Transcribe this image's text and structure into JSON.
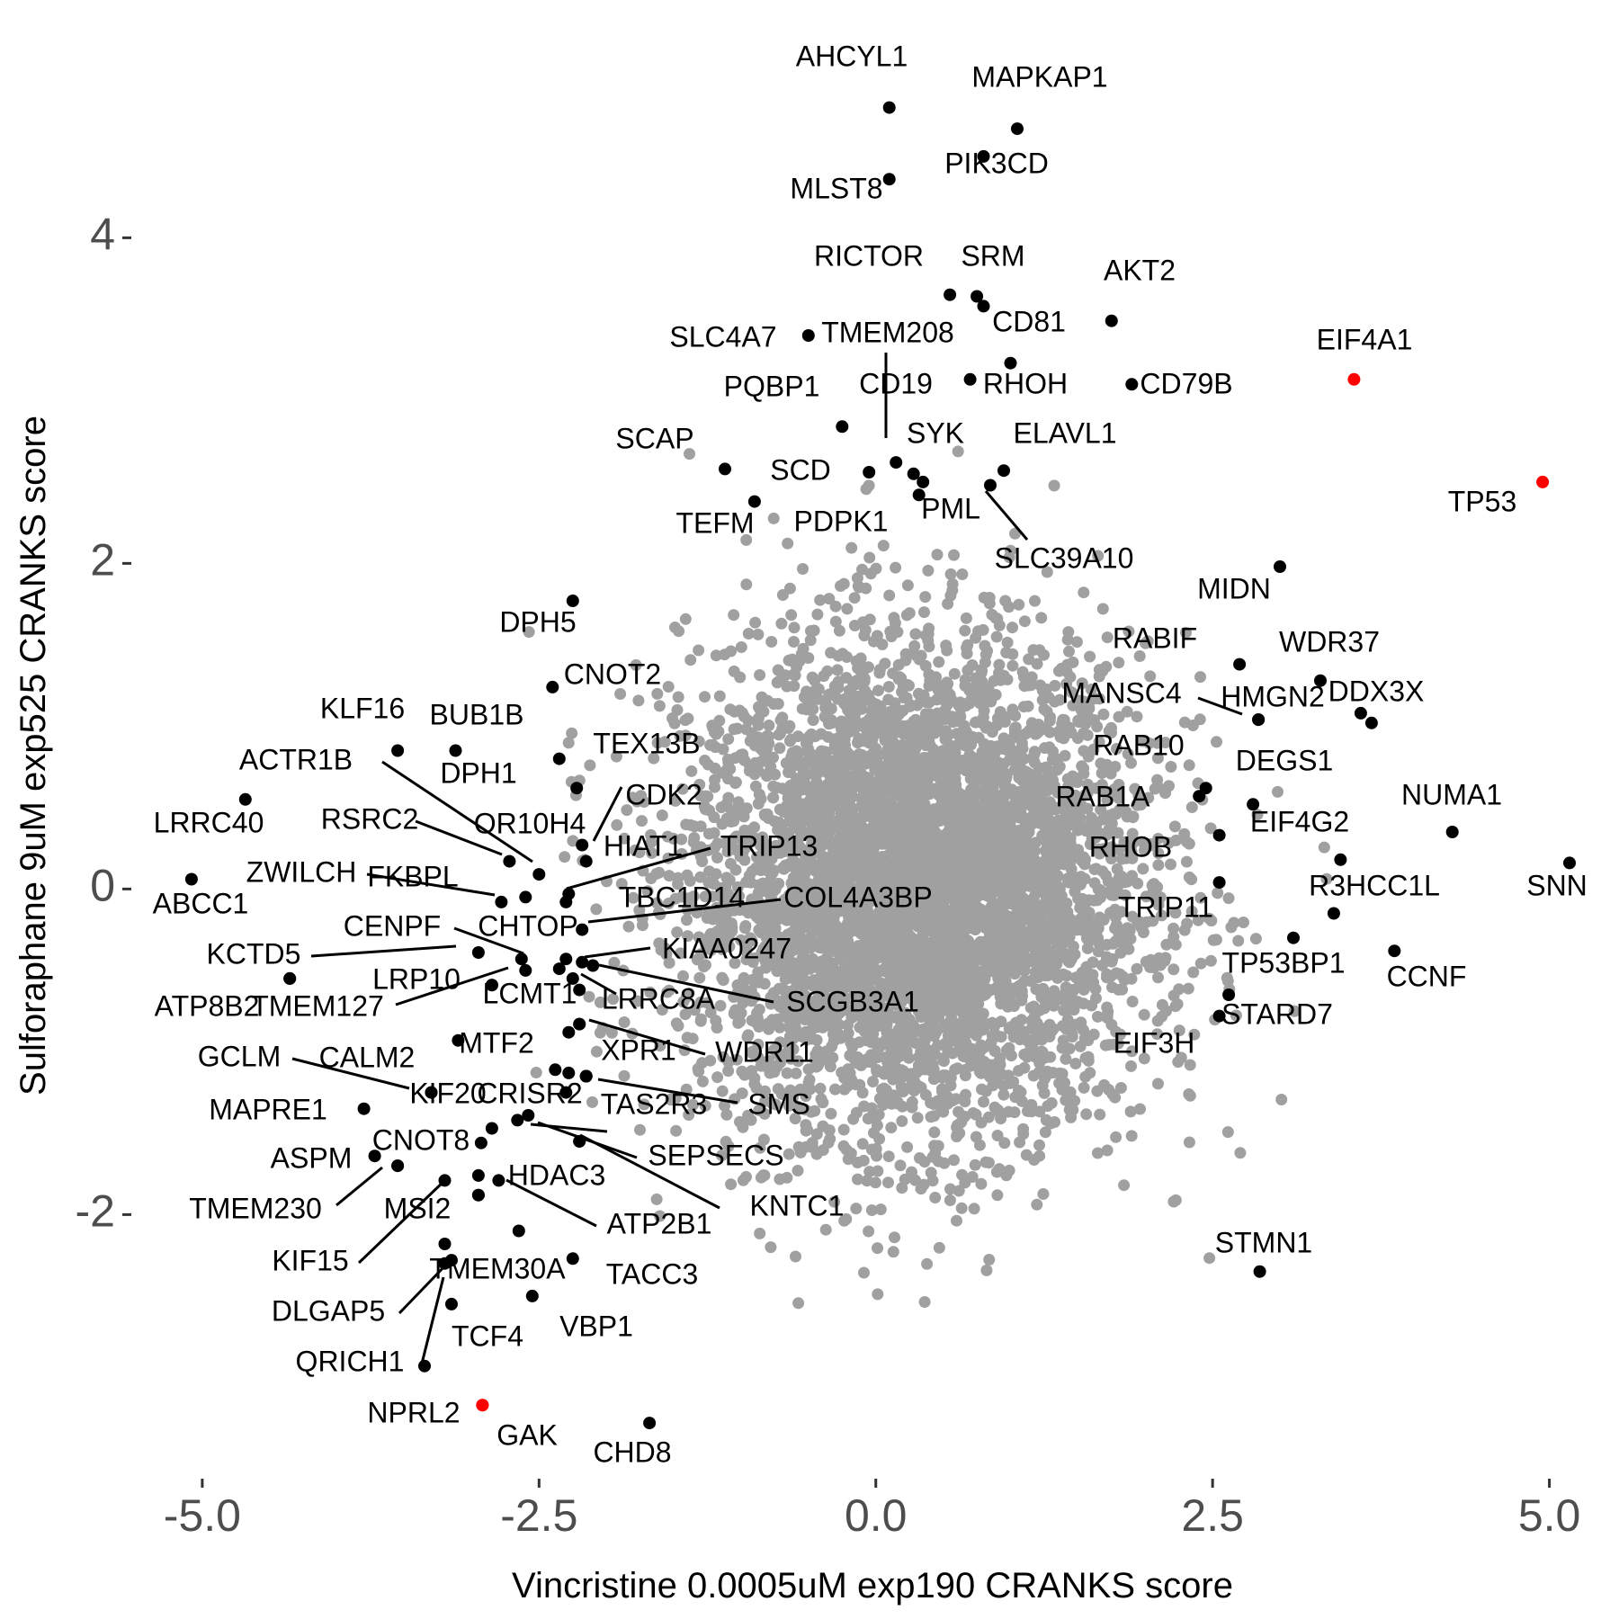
{
  "chart_data": {
    "type": "scatter",
    "title": "",
    "xlabel": "Vincristine 0.0005uM exp190 CRANKS score",
    "ylabel": "Sulforaphane 9uM exp525 CRANKS score",
    "xlim": [
      -5.5,
      5.35
    ],
    "ylim": [
      -3.6,
      5.35
    ],
    "x_ticks": [
      {
        "value": -5.0,
        "label": "-5.0"
      },
      {
        "value": -2.5,
        "label": "-2.5"
      },
      {
        "value": 0.0,
        "label": "0.0"
      },
      {
        "value": 2.5,
        "label": "2.5"
      },
      {
        "value": 5.0,
        "label": "5.0"
      }
    ],
    "y_ticks": [
      {
        "value": -2,
        "label": "-2"
      },
      {
        "value": 0,
        "label": "0"
      },
      {
        "value": 2,
        "label": "2"
      },
      {
        "value": 4,
        "label": "4"
      }
    ],
    "grid": false,
    "legend": "none",
    "colors": {
      "background": "#ffffff",
      "cloud": "#a0a0a0",
      "highlight": "#000000",
      "special": "#ff0000",
      "tick_text": "#4d4d4d"
    },
    "background_cloud": {
      "description_only": false,
      "center": [
        0.3,
        0.0
      ],
      "sd": [
        0.85,
        0.75
      ]
    },
    "highlighted_points": [
      {
        "gene": "AHCYL1",
        "x": 0.1,
        "y": 4.8,
        "color": "#000000"
      },
      {
        "gene": "MAPKAP1",
        "x": 1.05,
        "y": 4.67,
        "color": "#000000"
      },
      {
        "gene": "PIK3CD",
        "x": 0.8,
        "y": 4.5,
        "color": "#000000"
      },
      {
        "gene": "MLST8",
        "x": 0.1,
        "y": 4.36,
        "color": "#000000"
      },
      {
        "gene": "RICTOR",
        "x": 0.55,
        "y": 3.65,
        "color": "#000000"
      },
      {
        "gene": "SRM",
        "x": 0.75,
        "y": 3.64,
        "color": "#000000"
      },
      {
        "gene": "",
        "x": 0.8,
        "y": 3.58,
        "color": "#000000"
      },
      {
        "gene": "AKT2",
        "x": 1.75,
        "y": 3.49,
        "color": "#000000"
      },
      {
        "gene": "SLC4A7",
        "x": -0.5,
        "y": 3.4,
        "color": "#000000"
      },
      {
        "gene": "CD81",
        "x": 1.0,
        "y": 3.23,
        "color": "#000000"
      },
      {
        "gene": "RHOH",
        "x": 0.7,
        "y": 3.13,
        "color": "#000000"
      },
      {
        "gene": "CD79B",
        "x": 1.9,
        "y": 3.1,
        "color": "#000000"
      },
      {
        "gene": "EIF4A1",
        "x": 3.55,
        "y": 3.13,
        "color": "#ff0000"
      },
      {
        "gene": "PQBP1",
        "x": -0.25,
        "y": 2.84,
        "color": "#000000"
      },
      {
        "gene": "TMEM208",
        "x": 0.15,
        "y": 2.62,
        "color": "#000000"
      },
      {
        "gene": "SCAP",
        "x": -1.12,
        "y": 2.58,
        "color": "#000000"
      },
      {
        "gene": "SCD",
        "x": -0.05,
        "y": 2.56,
        "color": "#000000"
      },
      {
        "gene": "CD19",
        "x": 0.28,
        "y": 2.55,
        "color": "#000000"
      },
      {
        "gene": "SYK",
        "x": 0.35,
        "y": 2.5,
        "color": "#000000"
      },
      {
        "gene": "ELAVL1",
        "x": 0.95,
        "y": 2.57,
        "color": "#000000"
      },
      {
        "gene": "SLC39A10",
        "x": 0.85,
        "y": 2.48,
        "color": "#000000"
      },
      {
        "gene": "PML",
        "x": 0.32,
        "y": 2.42,
        "color": "#000000"
      },
      {
        "gene": "TP53",
        "x": 4.95,
        "y": 2.5,
        "color": "#ff0000"
      },
      {
        "gene": "TEFM",
        "x": -0.9,
        "y": 2.38,
        "color": "#000000"
      },
      {
        "gene": "MIDN",
        "x": 3.0,
        "y": 1.98,
        "color": "#000000"
      },
      {
        "gene": "DPH5",
        "x": -2.25,
        "y": 1.77,
        "color": "#000000"
      },
      {
        "gene": "RABIF",
        "x": 2.7,
        "y": 1.38,
        "color": "#000000"
      },
      {
        "gene": "WDR37",
        "x": 3.3,
        "y": 1.28,
        "color": "#000000"
      },
      {
        "gene": "CNOT2",
        "x": -2.4,
        "y": 1.24,
        "color": "#000000"
      },
      {
        "gene": "DDX3X",
        "x": 3.6,
        "y": 1.08,
        "color": "#000000"
      },
      {
        "gene": "",
        "x": 3.68,
        "y": 1.02,
        "color": "#000000"
      },
      {
        "gene": "HMGN2",
        "x": 2.84,
        "y": 1.04,
        "color": "#000000"
      },
      {
        "gene": "MANSC4",
        "x": 2.84,
        "y": 1.04,
        "color": "#000000"
      },
      {
        "gene": "KLF16",
        "x": -3.55,
        "y": 0.85,
        "color": "#000000"
      },
      {
        "gene": "BUB1B",
        "x": -3.12,
        "y": 0.85,
        "color": "#000000"
      },
      {
        "gene": "TEX13B",
        "x": -2.35,
        "y": 0.8,
        "color": "#000000"
      },
      {
        "gene": "DPH1",
        "x": -2.22,
        "y": 0.62,
        "color": "#000000"
      },
      {
        "gene": "RAB10",
        "x": 2.45,
        "y": 0.62,
        "color": "#000000"
      },
      {
        "gene": "RAB1A",
        "x": 2.4,
        "y": 0.57,
        "color": "#000000"
      },
      {
        "gene": "DEGS1",
        "x": 2.8,
        "y": 0.52,
        "color": "#000000"
      },
      {
        "gene": "LRRC40",
        "x": -4.68,
        "y": 0.55,
        "color": "#000000"
      },
      {
        "gene": "NUMA1",
        "x": 4.28,
        "y": 0.35,
        "color": "#000000"
      },
      {
        "gene": "RHOB",
        "x": 2.55,
        "y": 0.33,
        "color": "#000000"
      },
      {
        "gene": "CDK2",
        "x": -2.18,
        "y": 0.27,
        "color": "#000000"
      },
      {
        "gene": "EIF4G2",
        "x": 3.45,
        "y": 0.18,
        "color": "#000000"
      },
      {
        "gene": "HIAT1",
        "x": -2.15,
        "y": 0.17,
        "color": "#000000"
      },
      {
        "gene": "SNN",
        "x": 5.15,
        "y": 0.16,
        "color": "#000000"
      },
      {
        "gene": "RSRC2",
        "x": -2.72,
        "y": 0.17,
        "color": "#000000"
      },
      {
        "gene": "OR10H4",
        "x": -2.5,
        "y": 0.09,
        "color": "#000000"
      },
      {
        "gene": "ABCC1",
        "x": -5.08,
        "y": 0.06,
        "color": "#000000"
      },
      {
        "gene": "TRIP11",
        "x": 2.55,
        "y": 0.04,
        "color": "#000000"
      },
      {
        "gene": "TRIP13",
        "x": -2.28,
        "y": -0.03,
        "color": "#000000"
      },
      {
        "gene": "ZWILCH",
        "x": -2.6,
        "y": -0.05,
        "color": "#000000"
      },
      {
        "gene": "FKBPL",
        "x": -2.78,
        "y": -0.08,
        "color": "#000000"
      },
      {
        "gene": "TBC1D14",
        "x": -2.3,
        "y": -0.08,
        "color": "#000000"
      },
      {
        "gene": "R3HCC1L",
        "x": 3.4,
        "y": -0.15,
        "color": "#000000"
      },
      {
        "gene": "COL4A3BP",
        "x": -2.18,
        "y": -0.25,
        "color": "#000000"
      },
      {
        "gene": "TP53BP1",
        "x": 3.1,
        "y": -0.3,
        "color": "#000000"
      },
      {
        "gene": "CCNF",
        "x": 3.85,
        "y": -0.38,
        "color": "#000000"
      },
      {
        "gene": "CENPF",
        "x": -2.95,
        "y": -0.39,
        "color": "#000000"
      },
      {
        "gene": "CHTOP",
        "x": -2.63,
        "y": -0.43,
        "color": "#000000"
      },
      {
        "gene": "KIAA0247",
        "x": -2.3,
        "y": -0.43,
        "color": "#000000"
      },
      {
        "gene": "",
        "x": -2.18,
        "y": -0.45,
        "color": "#000000"
      },
      {
        "gene": "",
        "x": -2.35,
        "y": -0.49,
        "color": "#000000"
      },
      {
        "gene": "SCGB3A1",
        "x": -2.1,
        "y": -0.47,
        "color": "#000000"
      },
      {
        "gene": "",
        "x": -2.6,
        "y": -0.5,
        "color": "#000000"
      },
      {
        "gene": "KCTD5",
        "x": -4.35,
        "y": -0.55,
        "color": "#000000"
      },
      {
        "gene": "LRP10",
        "x": -2.85,
        "y": -0.59,
        "color": "#000000"
      },
      {
        "gene": "LCMT1",
        "x": -2.25,
        "y": -0.55,
        "color": "#000000"
      },
      {
        "gene": "TMEM127",
        "x": -2.85,
        "y": -0.59,
        "color": "#000000"
      },
      {
        "gene": "LRRC8A",
        "x": -2.2,
        "y": -0.62,
        "color": "#000000"
      },
      {
        "gene": "STARD7",
        "x": 2.62,
        "y": -0.65,
        "color": "#000000"
      },
      {
        "gene": "EIF3H",
        "x": 2.55,
        "y": -0.78,
        "color": "#000000"
      },
      {
        "gene": "ATP8B2",
        "x": -4.35,
        "y": -0.55,
        "color": "#000000"
      },
      {
        "gene": "XPR1",
        "x": -2.2,
        "y": -0.83,
        "color": "#000000"
      },
      {
        "gene": "WDR11",
        "x": -2.2,
        "y": -0.83,
        "color": "#000000"
      },
      {
        "gene": "",
        "x": -2.28,
        "y": -0.88,
        "color": "#000000"
      },
      {
        "gene": "MTF2",
        "x": -3.1,
        "y": -0.93,
        "color": "#000000"
      },
      {
        "gene": "",
        "x": -2.38,
        "y": -1.11,
        "color": "#000000"
      },
      {
        "gene": "",
        "x": -2.28,
        "y": -1.13,
        "color": "#000000"
      },
      {
        "gene": "CALM2",
        "x": -2.15,
        "y": -1.15,
        "color": "#000000"
      },
      {
        "gene": "TAS2R3",
        "x": -2.15,
        "y": -1.15,
        "color": "#000000"
      },
      {
        "gene": "GCLM",
        "x": -3.3,
        "y": -1.25,
        "color": "#000000"
      },
      {
        "gene": "KIF20",
        "x": -3.3,
        "y": -1.25,
        "color": "#000000"
      },
      {
        "gene": "CRISR2",
        "x": -2.3,
        "y": -1.25,
        "color": "#000000"
      },
      {
        "gene": "SMS",
        "x": -2.15,
        "y": -1.15,
        "color": "#000000"
      },
      {
        "gene": "MAPRE1",
        "x": -3.8,
        "y": -1.35,
        "color": "#000000"
      },
      {
        "gene": "",
        "x": -2.58,
        "y": -1.39,
        "color": "#000000"
      },
      {
        "gene": "",
        "x": -2.66,
        "y": -1.42,
        "color": "#000000"
      },
      {
        "gene": "CNOT8",
        "x": -2.85,
        "y": -1.47,
        "color": "#000000"
      },
      {
        "gene": "SEPSECS",
        "x": -2.2,
        "y": -1.55,
        "color": "#000000"
      },
      {
        "gene": "KNTC1",
        "x": -2.2,
        "y": -1.55,
        "color": "#000000"
      },
      {
        "gene": "",
        "x": -2.93,
        "y": -1.56,
        "color": "#000000"
      },
      {
        "gene": "ASPM",
        "x": -3.72,
        "y": -1.64,
        "color": "#000000"
      },
      {
        "gene": "",
        "x": -3.55,
        "y": -1.7,
        "color": "#000000"
      },
      {
        "gene": "",
        "x": -2.95,
        "y": -1.76,
        "color": "#000000"
      },
      {
        "gene": "HDAC3",
        "x": -2.8,
        "y": -1.79,
        "color": "#000000"
      },
      {
        "gene": "MSI2",
        "x": -3.2,
        "y": -1.79,
        "color": "#000000"
      },
      {
        "gene": "TMEM230",
        "x": -3.55,
        "y": -1.7,
        "color": "#000000"
      },
      {
        "gene": "",
        "x": -2.95,
        "y": -1.88,
        "color": "#000000"
      },
      {
        "gene": "ATP2B1",
        "x": -2.95,
        "y": -1.88,
        "color": "#000000"
      },
      {
        "gene": "",
        "x": -2.65,
        "y": -2.1,
        "color": "#000000"
      },
      {
        "gene": "KIF15",
        "x": -3.2,
        "y": -2.18,
        "color": "#000000"
      },
      {
        "gene": "TACC3",
        "x": -2.25,
        "y": -2.27,
        "color": "#000000"
      },
      {
        "gene": "TMEM30A",
        "x": -3.15,
        "y": -2.28,
        "color": "#000000"
      },
      {
        "gene": "DLGAP5",
        "x": -3.2,
        "y": -2.3,
        "color": "#000000"
      },
      {
        "gene": "VBP1",
        "x": -2.55,
        "y": -2.5,
        "color": "#000000"
      },
      {
        "gene": "TCF4",
        "x": -3.15,
        "y": -2.55,
        "color": "#000000"
      },
      {
        "gene": "QRICH1",
        "x": -3.35,
        "y": -2.93,
        "color": "#000000"
      },
      {
        "gene": "NPRL2",
        "x": -2.92,
        "y": -3.17,
        "color": "#ff0000"
      },
      {
        "gene": "GAK",
        "x": -2.92,
        "y": -3.17,
        "color": "#ff0000"
      },
      {
        "gene": "CHD8",
        "x": -1.68,
        "y": -3.28,
        "color": "#000000"
      },
      {
        "gene": "STMN1",
        "x": 2.85,
        "y": -2.35,
        "color": "#000000"
      }
    ],
    "annotations": [
      {
        "text": "AHCYL1"
      },
      {
        "text": "MAPKAP1"
      },
      {
        "text": "PIK3CD"
      },
      {
        "text": "MLST8"
      },
      {
        "text": "RICTOR"
      },
      {
        "text": "SRM"
      },
      {
        "text": "AKT2"
      },
      {
        "text": "SLC4A7"
      },
      {
        "text": "TMEM208"
      },
      {
        "text": "CD81"
      },
      {
        "text": "EIF4A1"
      },
      {
        "text": "PQBP1"
      },
      {
        "text": "CD19"
      },
      {
        "text": "RHOH"
      },
      {
        "text": "CD79B"
      },
      {
        "text": "SCAP"
      },
      {
        "text": "SYK"
      },
      {
        "text": "ELAVL1"
      },
      {
        "text": "SCD"
      },
      {
        "text": "TP53"
      },
      {
        "text": "PML"
      },
      {
        "text": "TEFM"
      },
      {
        "text": "PDPK1"
      },
      {
        "text": "SLC39A10"
      },
      {
        "text": "MIDN"
      },
      {
        "text": "DPH5"
      },
      {
        "text": "RABIF"
      },
      {
        "text": "WDR37"
      },
      {
        "text": "CNOT2"
      },
      {
        "text": "MANSC4"
      },
      {
        "text": "HMGN2"
      },
      {
        "text": "DDX3X"
      },
      {
        "text": "KLF16"
      },
      {
        "text": "BUB1B"
      },
      {
        "text": "TEX13B"
      },
      {
        "text": "RAB10"
      },
      {
        "text": "ACTR1B"
      },
      {
        "text": "DPH1"
      },
      {
        "text": "DEGS1"
      },
      {
        "text": "RAB1A"
      },
      {
        "text": "CDK2"
      },
      {
        "text": "NUMA1"
      },
      {
        "text": "LRRC40"
      },
      {
        "text": "RSRC2"
      },
      {
        "text": "OR10H4"
      },
      {
        "text": "EIF4G2"
      },
      {
        "text": "HIAT1"
      },
      {
        "text": "TRIP13"
      },
      {
        "text": "RHOB"
      },
      {
        "text": "ZWILCH"
      },
      {
        "text": "FKBPL"
      },
      {
        "text": "SNN"
      },
      {
        "text": "R3HCC1L"
      },
      {
        "text": "ABCC1"
      },
      {
        "text": "TBC1D14"
      },
      {
        "text": "COL4A3BP"
      },
      {
        "text": "TRIP11"
      },
      {
        "text": "CENPF"
      },
      {
        "text": "CHTOP"
      },
      {
        "text": "KCTD5"
      },
      {
        "text": "KIAA0247"
      },
      {
        "text": "TP53BP1"
      },
      {
        "text": "LRP10"
      },
      {
        "text": "CCNF"
      },
      {
        "text": "LCMT1"
      },
      {
        "text": "ATP8B2"
      },
      {
        "text": "TMEM127"
      },
      {
        "text": "LRRC8A"
      },
      {
        "text": "SCGB3A1"
      },
      {
        "text": "STARD7"
      },
      {
        "text": "MTF2"
      },
      {
        "text": "EIF3H"
      },
      {
        "text": "XPR1"
      },
      {
        "text": "WDR11"
      },
      {
        "text": "GCLM"
      },
      {
        "text": "CALM2"
      },
      {
        "text": "KIF20"
      },
      {
        "text": "CRISR2"
      },
      {
        "text": "TAS2R3"
      },
      {
        "text": "SMS"
      },
      {
        "text": "MAPRE1"
      },
      {
        "text": "CNOT8"
      },
      {
        "text": "SEPSECS"
      },
      {
        "text": "ASPM"
      },
      {
        "text": "HDAC3"
      },
      {
        "text": "KNTC1"
      },
      {
        "text": "TMEM230"
      },
      {
        "text": "MSI2"
      },
      {
        "text": "ATP2B1"
      },
      {
        "text": "STMN1"
      },
      {
        "text": "KIF15"
      },
      {
        "text": "TMEM30A"
      },
      {
        "text": "TACC3"
      },
      {
        "text": "DLGAP5"
      },
      {
        "text": "VBP1"
      },
      {
        "text": "TCF4"
      },
      {
        "text": "QRICH1"
      },
      {
        "text": "NPRL2"
      },
      {
        "text": "GAK"
      },
      {
        "text": "CHD8"
      }
    ]
  }
}
